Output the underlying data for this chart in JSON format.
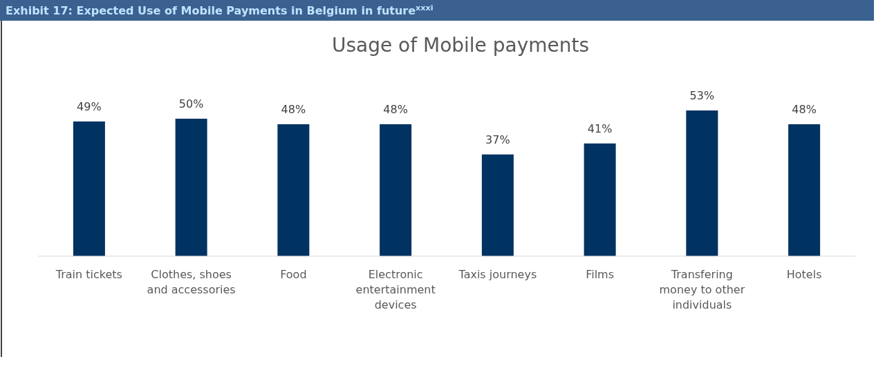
{
  "chart_data": {
    "type": "bar",
    "title": "Exhibit 17: Expected Use of Mobile Payments in Belgium in future$^{xxxi}$",
    "subtitle": "Usage of Mobile payments",
    "categories": [
      "Train tickets",
      "Clothes, shoes and accessories",
      "Food",
      "Electronic entertainment devices",
      "Taxis journeys",
      "Films",
      "Transfering money to other individuals",
      "Hotels"
    ],
    "values": [
      49,
      50,
      48,
      48,
      37,
      41,
      53,
      48
    ],
    "value_labels": [
      "49%",
      "50%",
      "48%",
      "48%",
      "37%",
      "41%",
      "53%",
      "48%"
    ],
    "color": "#003262"
  }
}
